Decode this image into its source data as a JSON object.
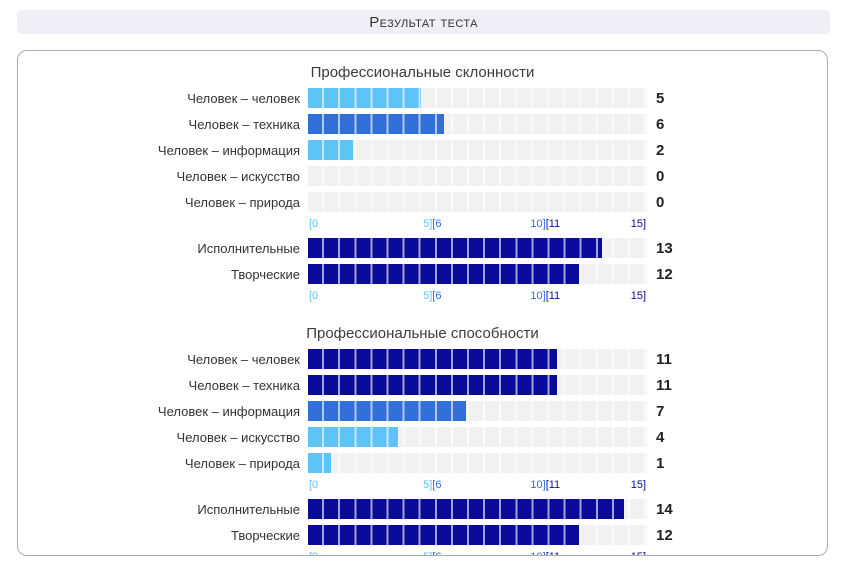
{
  "header": {
    "title": "Результат теста"
  },
  "colors": {
    "track": "#f1f1f1",
    "ranges": [
      {
        "label": "0-5",
        "max": 5,
        "color": "#5ec3f7"
      },
      {
        "label": "6-10",
        "max": 10,
        "color": "#3170d8"
      },
      {
        "label": "11-15",
        "max": 15,
        "color": "#0b0b9b"
      }
    ]
  },
  "axis": {
    "min": 0,
    "max": 15,
    "labels": [
      {
        "pos": 0,
        "align": "left",
        "parts": [
          {
            "text": "[0",
            "range": 0
          }
        ]
      },
      {
        "pos": 36.67,
        "align": "center",
        "parts": [
          {
            "text": "5]",
            "range": 0
          },
          {
            "text": "[6",
            "range": 1
          }
        ]
      },
      {
        "pos": 70,
        "align": "center",
        "parts": [
          {
            "text": "10]",
            "range": 1
          },
          {
            "text": "[11",
            "range": 2
          }
        ]
      },
      {
        "pos": 100,
        "align": "right",
        "parts": [
          {
            "text": "15]",
            "range": 2
          }
        ]
      }
    ]
  },
  "chart_data": [
    {
      "type": "bar",
      "title": "Профессиональные склонности",
      "xlim": [
        0,
        15
      ],
      "groups": [
        {
          "categories": [
            "Человек – человек",
            "Человек – техника",
            "Человек – информация",
            "Человек – искусство",
            "Человек – природа"
          ],
          "values": [
            5,
            6,
            2,
            0,
            0
          ]
        },
        {
          "categories": [
            "Исполнительные",
            "Творческие"
          ],
          "values": [
            13,
            12
          ]
        }
      ]
    },
    {
      "type": "bar",
      "title": "Профессиональные способности",
      "xlim": [
        0,
        15
      ],
      "groups": [
        {
          "categories": [
            "Человек – человек",
            "Человек – техника",
            "Человек – информация",
            "Человек – искусство",
            "Человек – природа"
          ],
          "values": [
            11,
            11,
            7,
            4,
            1
          ]
        },
        {
          "categories": [
            "Исполнительные",
            "Творческие"
          ],
          "values": [
            14,
            12
          ]
        }
      ]
    }
  ]
}
